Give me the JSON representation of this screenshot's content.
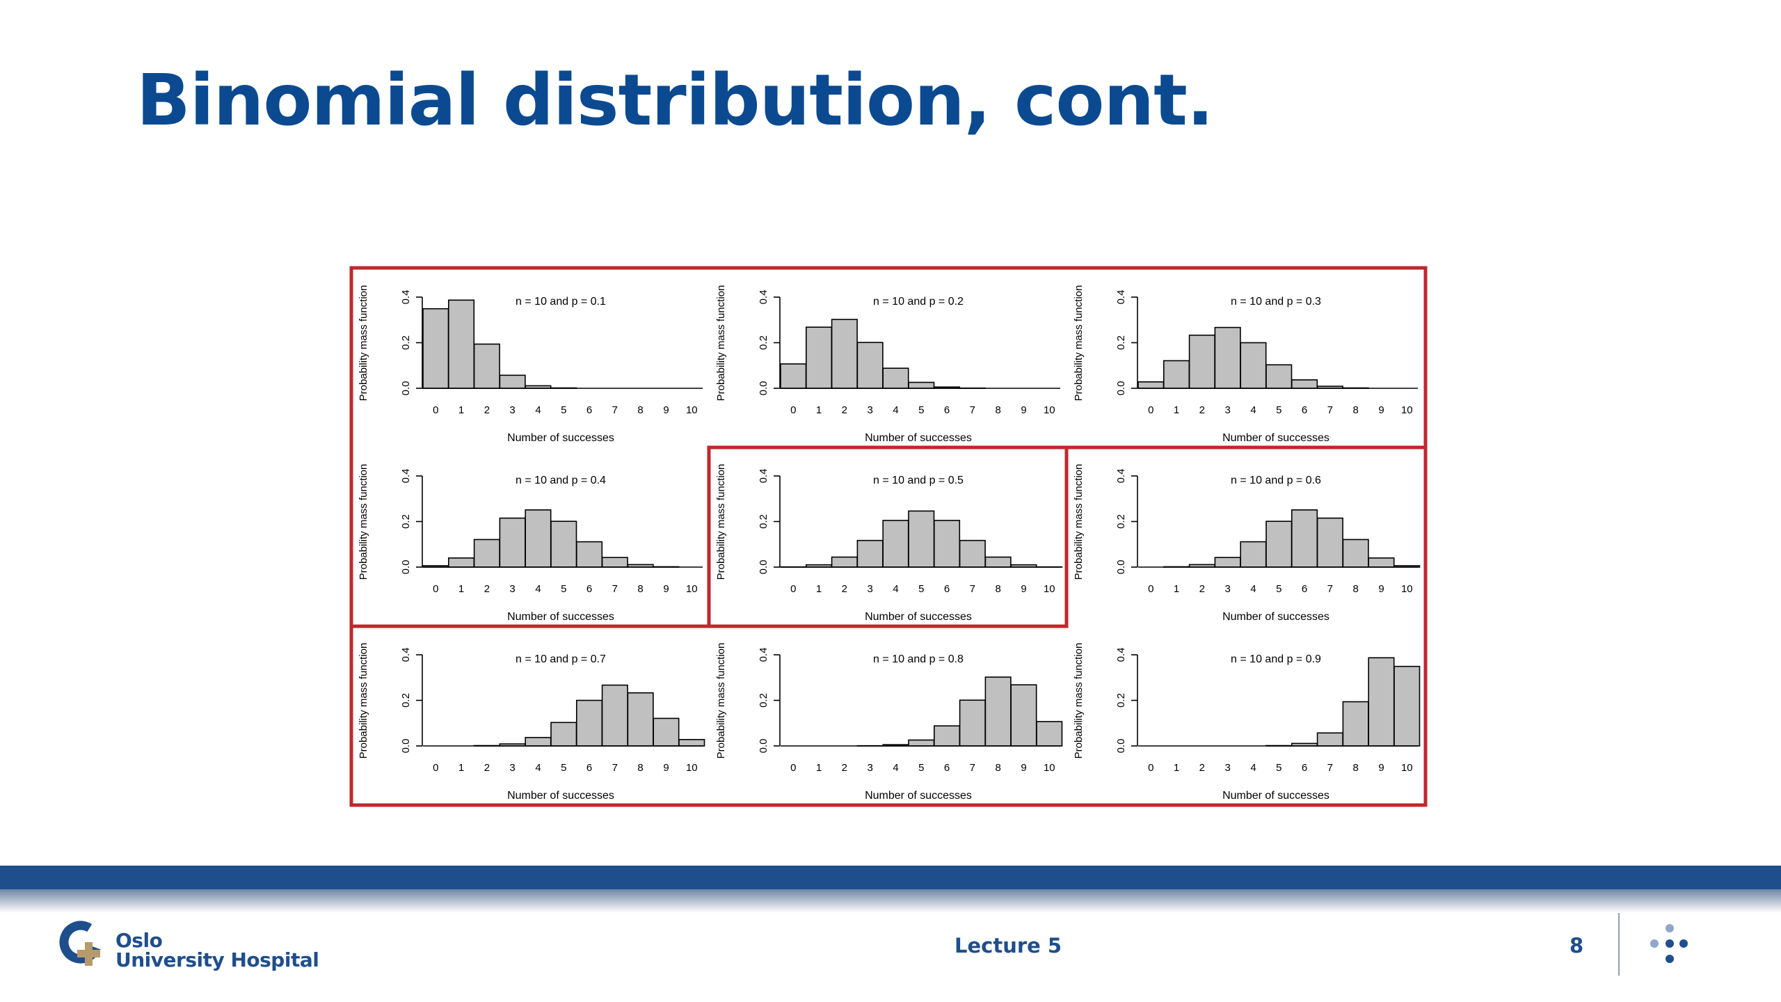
{
  "slide": {
    "title": "Binomial distribution, cont."
  },
  "footer": {
    "logo_line1": "Oslo",
    "logo_line2": "University Hospital",
    "lecture": "Lecture 5",
    "page_number": "8"
  },
  "colors": {
    "title": "#0b4a91",
    "highlight_frame": "#c1272d",
    "bar_fill": "#c0c0c0",
    "footer_blue": "#1f4e8c",
    "logo_accent": "#b79a6a"
  },
  "chart_data": [
    {
      "type": "bar",
      "title": "n = 10 and p = 0.1",
      "xlabel": "Number of successes",
      "ylabel": "Probability mass function",
      "categories": [
        "0",
        "1",
        "2",
        "3",
        "4",
        "5",
        "6",
        "7",
        "8",
        "9",
        "10"
      ],
      "values": [
        0.349,
        0.387,
        0.194,
        0.057,
        0.011,
        0.0015,
        0.0001,
        0,
        0,
        0,
        0
      ],
      "ylim": [
        0,
        0.4
      ],
      "yticks": [
        "0.0",
        "0.2",
        "0.4"
      ]
    },
    {
      "type": "bar",
      "title": "n = 10 and p = 0.2",
      "xlabel": "Number of successes",
      "ylabel": "Probability mass function",
      "categories": [
        "0",
        "1",
        "2",
        "3",
        "4",
        "5",
        "6",
        "7",
        "8",
        "9",
        "10"
      ],
      "values": [
        0.107,
        0.268,
        0.302,
        0.201,
        0.088,
        0.026,
        0.0055,
        0.0008,
        0.0001,
        0,
        0
      ],
      "ylim": [
        0,
        0.4
      ],
      "yticks": [
        "0.0",
        "0.2",
        "0.4"
      ]
    },
    {
      "type": "bar",
      "title": "n = 10 and p = 0.3",
      "xlabel": "Number of successes",
      "ylabel": "Probability mass function",
      "categories": [
        "0",
        "1",
        "2",
        "3",
        "4",
        "5",
        "6",
        "7",
        "8",
        "9",
        "10"
      ],
      "values": [
        0.028,
        0.121,
        0.233,
        0.267,
        0.2,
        0.103,
        0.037,
        0.009,
        0.0014,
        0.0001,
        0
      ],
      "ylim": [
        0,
        0.4
      ],
      "yticks": [
        "0.0",
        "0.2",
        "0.4"
      ]
    },
    {
      "type": "bar",
      "title": "n = 10 and p = 0.4",
      "xlabel": "Number of successes",
      "ylabel": "Probability mass function",
      "categories": [
        "0",
        "1",
        "2",
        "3",
        "4",
        "5",
        "6",
        "7",
        "8",
        "9",
        "10"
      ],
      "values": [
        0.006,
        0.04,
        0.121,
        0.215,
        0.251,
        0.201,
        0.111,
        0.042,
        0.011,
        0.0016,
        0.0001
      ],
      "ylim": [
        0,
        0.4
      ],
      "yticks": [
        "0.0",
        "0.2",
        "0.4"
      ]
    },
    {
      "type": "bar",
      "title": "n = 10 and p = 0.5",
      "xlabel": "Number of successes",
      "ylabel": "Probability mass function",
      "categories": [
        "0",
        "1",
        "2",
        "3",
        "4",
        "5",
        "6",
        "7",
        "8",
        "9",
        "10"
      ],
      "values": [
        0.001,
        0.01,
        0.044,
        0.117,
        0.205,
        0.246,
        0.205,
        0.117,
        0.044,
        0.01,
        0.001
      ],
      "ylim": [
        0,
        0.4
      ],
      "yticks": [
        "0.0",
        "0.2",
        "0.4"
      ]
    },
    {
      "type": "bar",
      "title": "n = 10 and p = 0.6",
      "xlabel": "Number of successes",
      "ylabel": "Probability mass function",
      "categories": [
        "0",
        "1",
        "2",
        "3",
        "4",
        "5",
        "6",
        "7",
        "8",
        "9",
        "10"
      ],
      "values": [
        0.0001,
        0.0016,
        0.011,
        0.042,
        0.111,
        0.201,
        0.251,
        0.215,
        0.121,
        0.04,
        0.006
      ],
      "ylim": [
        0,
        0.4
      ],
      "yticks": [
        "0.0",
        "0.2",
        "0.4"
      ]
    },
    {
      "type": "bar",
      "title": "n = 10 and p = 0.7",
      "xlabel": "Number of successes",
      "ylabel": "Probability mass function",
      "categories": [
        "0",
        "1",
        "2",
        "3",
        "4",
        "5",
        "6",
        "7",
        "8",
        "9",
        "10"
      ],
      "values": [
        0,
        0.0001,
        0.0014,
        0.009,
        0.037,
        0.103,
        0.2,
        0.267,
        0.233,
        0.121,
        0.028
      ],
      "ylim": [
        0,
        0.4
      ],
      "yticks": [
        "0.0",
        "0.2",
        "0.4"
      ]
    },
    {
      "type": "bar",
      "title": "n = 10 and p = 0.8",
      "xlabel": "Number of successes",
      "ylabel": "Probability mass function",
      "categories": [
        "0",
        "1",
        "2",
        "3",
        "4",
        "5",
        "6",
        "7",
        "8",
        "9",
        "10"
      ],
      "values": [
        0,
        0,
        0.0001,
        0.0008,
        0.0055,
        0.026,
        0.088,
        0.201,
        0.302,
        0.268,
        0.107
      ],
      "ylim": [
        0,
        0.4
      ],
      "yticks": [
        "0.0",
        "0.2",
        "0.4"
      ]
    },
    {
      "type": "bar",
      "title": "n = 10 and p = 0.9",
      "xlabel": "Number of successes",
      "ylabel": "Probability mass function",
      "categories": [
        "0",
        "1",
        "2",
        "3",
        "4",
        "5",
        "6",
        "7",
        "8",
        "9",
        "10"
      ],
      "values": [
        0,
        0,
        0,
        0,
        0.0001,
        0.0015,
        0.011,
        0.057,
        0.194,
        0.387,
        0.349
      ],
      "ylim": [
        0,
        0.4
      ],
      "yticks": [
        "0.0",
        "0.2",
        "0.4"
      ]
    }
  ]
}
